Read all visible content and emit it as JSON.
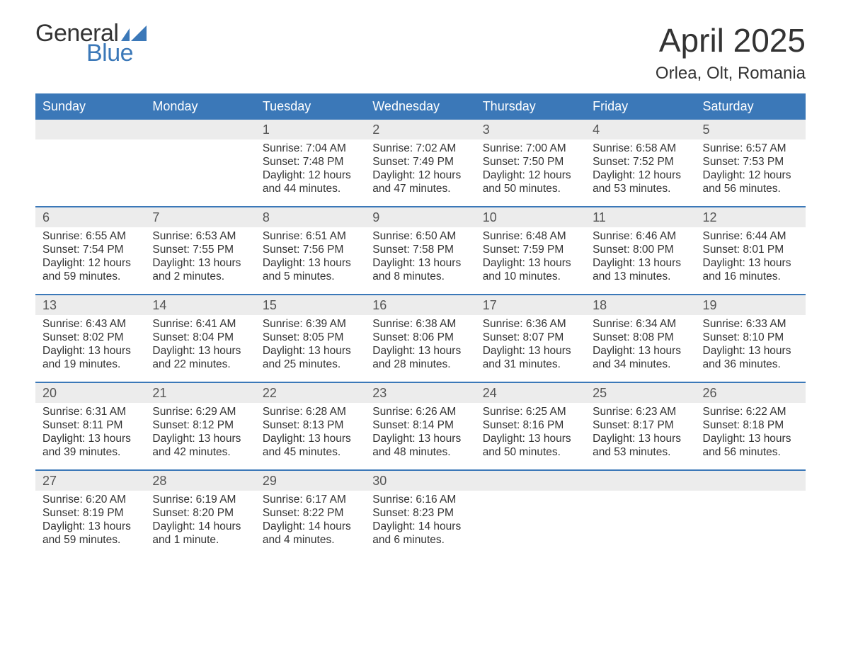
{
  "brand": {
    "text1": "General",
    "text2": "Blue",
    "color1": "#333333",
    "color2": "#3b78b8",
    "flag_color": "#3b78b8"
  },
  "title": {
    "month": "April 2025",
    "location": "Orlea, Olt, Romania"
  },
  "style": {
    "header_bg": "#3b78b8",
    "header_fg": "#ffffff",
    "strip_bg": "#ececec",
    "text_color": "#333333",
    "border_color": "#3b78b8",
    "body_bg": "#ffffff",
    "font_family": "Arial, Helvetica, sans-serif",
    "month_title_fontsize": 46,
    "location_fontsize": 24,
    "dayhead_fontsize": 18,
    "daynum_fontsize": 18,
    "content_fontsize": 15.5
  },
  "day_headers": [
    "Sunday",
    "Monday",
    "Tuesday",
    "Wednesday",
    "Thursday",
    "Friday",
    "Saturday"
  ],
  "weeks": [
    [
      {
        "n": "",
        "lines": []
      },
      {
        "n": "",
        "lines": []
      },
      {
        "n": "1",
        "lines": [
          "Sunrise: 7:04 AM",
          "Sunset: 7:48 PM",
          "Daylight: 12 hours",
          "and 44 minutes."
        ]
      },
      {
        "n": "2",
        "lines": [
          "Sunrise: 7:02 AM",
          "Sunset: 7:49 PM",
          "Daylight: 12 hours",
          "and 47 minutes."
        ]
      },
      {
        "n": "3",
        "lines": [
          "Sunrise: 7:00 AM",
          "Sunset: 7:50 PM",
          "Daylight: 12 hours",
          "and 50 minutes."
        ]
      },
      {
        "n": "4",
        "lines": [
          "Sunrise: 6:58 AM",
          "Sunset: 7:52 PM",
          "Daylight: 12 hours",
          "and 53 minutes."
        ]
      },
      {
        "n": "5",
        "lines": [
          "Sunrise: 6:57 AM",
          "Sunset: 7:53 PM",
          "Daylight: 12 hours",
          "and 56 minutes."
        ]
      }
    ],
    [
      {
        "n": "6",
        "lines": [
          "Sunrise: 6:55 AM",
          "Sunset: 7:54 PM",
          "Daylight: 12 hours",
          "and 59 minutes."
        ]
      },
      {
        "n": "7",
        "lines": [
          "Sunrise: 6:53 AM",
          "Sunset: 7:55 PM",
          "Daylight: 13 hours",
          "and 2 minutes."
        ]
      },
      {
        "n": "8",
        "lines": [
          "Sunrise: 6:51 AM",
          "Sunset: 7:56 PM",
          "Daylight: 13 hours",
          "and 5 minutes."
        ]
      },
      {
        "n": "9",
        "lines": [
          "Sunrise: 6:50 AM",
          "Sunset: 7:58 PM",
          "Daylight: 13 hours",
          "and 8 minutes."
        ]
      },
      {
        "n": "10",
        "lines": [
          "Sunrise: 6:48 AM",
          "Sunset: 7:59 PM",
          "Daylight: 13 hours",
          "and 10 minutes."
        ]
      },
      {
        "n": "11",
        "lines": [
          "Sunrise: 6:46 AM",
          "Sunset: 8:00 PM",
          "Daylight: 13 hours",
          "and 13 minutes."
        ]
      },
      {
        "n": "12",
        "lines": [
          "Sunrise: 6:44 AM",
          "Sunset: 8:01 PM",
          "Daylight: 13 hours",
          "and 16 minutes."
        ]
      }
    ],
    [
      {
        "n": "13",
        "lines": [
          "Sunrise: 6:43 AM",
          "Sunset: 8:02 PM",
          "Daylight: 13 hours",
          "and 19 minutes."
        ]
      },
      {
        "n": "14",
        "lines": [
          "Sunrise: 6:41 AM",
          "Sunset: 8:04 PM",
          "Daylight: 13 hours",
          "and 22 minutes."
        ]
      },
      {
        "n": "15",
        "lines": [
          "Sunrise: 6:39 AM",
          "Sunset: 8:05 PM",
          "Daylight: 13 hours",
          "and 25 minutes."
        ]
      },
      {
        "n": "16",
        "lines": [
          "Sunrise: 6:38 AM",
          "Sunset: 8:06 PM",
          "Daylight: 13 hours",
          "and 28 minutes."
        ]
      },
      {
        "n": "17",
        "lines": [
          "Sunrise: 6:36 AM",
          "Sunset: 8:07 PM",
          "Daylight: 13 hours",
          "and 31 minutes."
        ]
      },
      {
        "n": "18",
        "lines": [
          "Sunrise: 6:34 AM",
          "Sunset: 8:08 PM",
          "Daylight: 13 hours",
          "and 34 minutes."
        ]
      },
      {
        "n": "19",
        "lines": [
          "Sunrise: 6:33 AM",
          "Sunset: 8:10 PM",
          "Daylight: 13 hours",
          "and 36 minutes."
        ]
      }
    ],
    [
      {
        "n": "20",
        "lines": [
          "Sunrise: 6:31 AM",
          "Sunset: 8:11 PM",
          "Daylight: 13 hours",
          "and 39 minutes."
        ]
      },
      {
        "n": "21",
        "lines": [
          "Sunrise: 6:29 AM",
          "Sunset: 8:12 PM",
          "Daylight: 13 hours",
          "and 42 minutes."
        ]
      },
      {
        "n": "22",
        "lines": [
          "Sunrise: 6:28 AM",
          "Sunset: 8:13 PM",
          "Daylight: 13 hours",
          "and 45 minutes."
        ]
      },
      {
        "n": "23",
        "lines": [
          "Sunrise: 6:26 AM",
          "Sunset: 8:14 PM",
          "Daylight: 13 hours",
          "and 48 minutes."
        ]
      },
      {
        "n": "24",
        "lines": [
          "Sunrise: 6:25 AM",
          "Sunset: 8:16 PM",
          "Daylight: 13 hours",
          "and 50 minutes."
        ]
      },
      {
        "n": "25",
        "lines": [
          "Sunrise: 6:23 AM",
          "Sunset: 8:17 PM",
          "Daylight: 13 hours",
          "and 53 minutes."
        ]
      },
      {
        "n": "26",
        "lines": [
          "Sunrise: 6:22 AM",
          "Sunset: 8:18 PM",
          "Daylight: 13 hours",
          "and 56 minutes."
        ]
      }
    ],
    [
      {
        "n": "27",
        "lines": [
          "Sunrise: 6:20 AM",
          "Sunset: 8:19 PM",
          "Daylight: 13 hours",
          "and 59 minutes."
        ]
      },
      {
        "n": "28",
        "lines": [
          "Sunrise: 6:19 AM",
          "Sunset: 8:20 PM",
          "Daylight: 14 hours",
          "and 1 minute."
        ]
      },
      {
        "n": "29",
        "lines": [
          "Sunrise: 6:17 AM",
          "Sunset: 8:22 PM",
          "Daylight: 14 hours",
          "and 4 minutes."
        ]
      },
      {
        "n": "30",
        "lines": [
          "Sunrise: 6:16 AM",
          "Sunset: 8:23 PM",
          "Daylight: 14 hours",
          "and 6 minutes."
        ]
      },
      {
        "n": "",
        "lines": []
      },
      {
        "n": "",
        "lines": []
      },
      {
        "n": "",
        "lines": []
      }
    ]
  ]
}
